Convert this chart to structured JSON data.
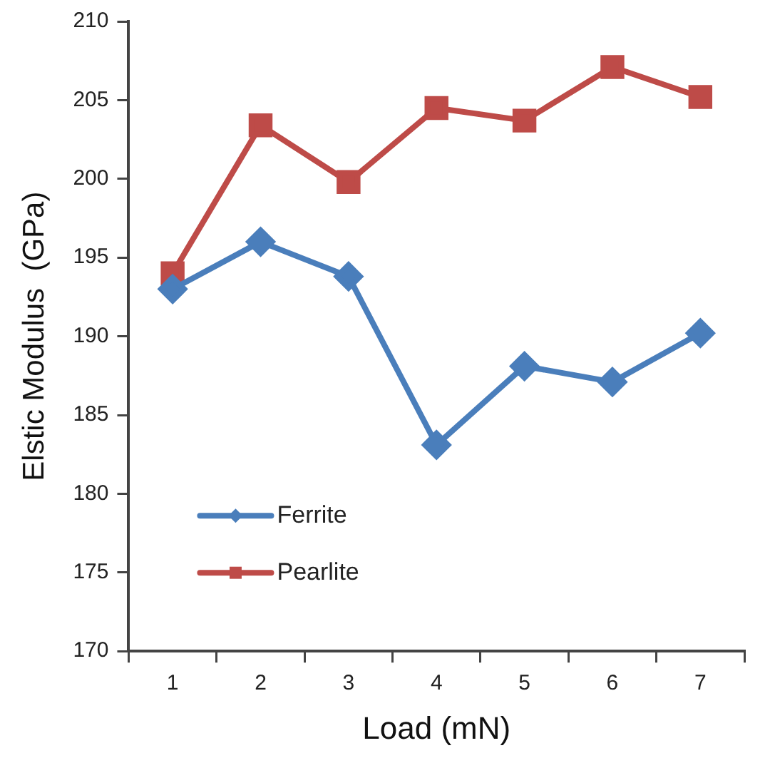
{
  "chart_data": {
    "type": "line",
    "xlabel": "Load (mN)",
    "ylabel": "Elstic Modulus  (GPa)",
    "categories": [
      "1",
      "2",
      "3",
      "4",
      "5",
      "6",
      "7"
    ],
    "series": [
      {
        "name": "Ferrite",
        "color": "#4a7ebb",
        "marker": "diamond",
        "values": [
          193.0,
          196.0,
          193.8,
          183.1,
          188.1,
          187.1,
          190.2
        ]
      },
      {
        "name": "Pearlite",
        "color": "#be4b48",
        "marker": "square",
        "values": [
          194.0,
          203.4,
          199.8,
          204.5,
          203.7,
          207.1,
          205.2
        ]
      }
    ],
    "ylim": [
      170,
      210
    ],
    "yticks": [
      170,
      175,
      180,
      185,
      190,
      195,
      200,
      205,
      210
    ],
    "grid": false,
    "legend": "bottom left",
    "line_style": "solid"
  }
}
